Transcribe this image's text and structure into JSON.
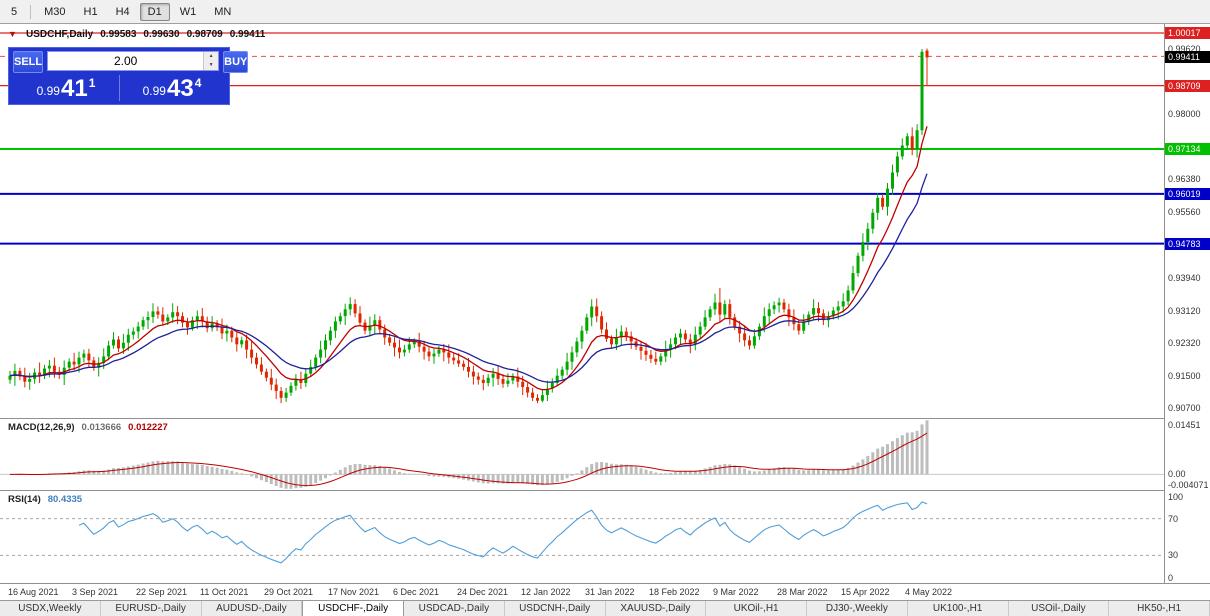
{
  "toolbar": {
    "items": [
      {
        "label": "5",
        "active": false
      },
      {
        "label": "M30",
        "active": false
      },
      {
        "label": "H1",
        "active": false
      },
      {
        "label": "H4",
        "active": false
      },
      {
        "label": "D1",
        "active": true
      },
      {
        "label": "W1",
        "active": false
      },
      {
        "label": "MN",
        "active": false
      }
    ]
  },
  "title": {
    "symbol": "USDCHF,Daily",
    "open": "0.99583",
    "high": "0.99630",
    "low": "0.98709",
    "close": "0.99411"
  },
  "trade": {
    "sell_label": "SELL",
    "buy_label": "BUY",
    "volume": "2.00",
    "sell": {
      "small": "0.99",
      "big": "41",
      "sup": "1"
    },
    "buy": {
      "small": "0.99",
      "big": "43",
      "sup": "4"
    }
  },
  "colors": {
    "macd_hist": "#bdbdbd",
    "macd_signal": "#c00000",
    "rsi_line": "#4f9fd8"
  },
  "macd": {
    "label": "MACD(12,26,9)",
    "value_main": "0.013666",
    "value_signal": "0.012227",
    "ticks": [
      "0.01451",
      "0.00",
      "-0.004071"
    ],
    "tick_values": [
      0.01451,
      0,
      -0.004071
    ]
  },
  "rsi": {
    "label": "RSI(14)",
    "value": "80.4335",
    "period": 14,
    "ticks": [
      "100",
      "70",
      "30",
      "0"
    ],
    "tick_values": [
      100,
      70,
      30,
      0
    ],
    "levels": [
      70,
      30
    ]
  },
  "tabs": [
    {
      "label": "USDX,Weekly",
      "active": false
    },
    {
      "label": "EURUSD-,Daily",
      "active": false
    },
    {
      "label": "AUDUSD-,Daily",
      "active": false
    },
    {
      "label": "USDCHF-,Daily",
      "active": true
    },
    {
      "label": "USDCAD-,Daily",
      "active": false
    },
    {
      "label": "USDCNH-,Daily",
      "active": false
    },
    {
      "label": "XAUUSD-,Daily",
      "active": false
    },
    {
      "label": "UKOil-,H1",
      "active": false
    },
    {
      "label": "DJ30-,Weekly",
      "active": false
    },
    {
      "label": "UK100-,H1",
      "active": false
    },
    {
      "label": "USOil-,Daily",
      "active": false
    },
    {
      "label": "HK50-,H1",
      "active": false
    }
  ],
  "chart_data": {
    "type": "candlestick",
    "title": "USDCHF Daily with MACD(12,26,9) and RSI(14)",
    "scale": 10000,
    "x_start": 10,
    "x_spacing": 4.93,
    "x_label_step": 13,
    "x_labels": [
      "16 Aug 2021",
      "3 Sep 2021",
      "22 Sep 2021",
      "11 Oct 2021",
      "29 Oct 2021",
      "17 Nov 2021",
      "6 Dec 2021",
      "24 Dec 2021",
      "12 Jan 2022",
      "31 Jan 2022",
      "18 Feb 2022",
      "9 Mar 2022",
      "28 Mar 2022",
      "15 Apr 2022",
      "4 May 2022"
    ],
    "y_range": [
      0.9045,
      1.0024
    ],
    "y_ticks": [
      "0.99620",
      "0.98000",
      "0.97180",
      "0.96380",
      "0.95560",
      "0.93940",
      "0.93120",
      "0.92320",
      "0.91500",
      "0.90700"
    ],
    "up_color": "#00a800",
    "down_color": "#e02800",
    "mas": [
      {
        "period": 9,
        "color": "#c00000"
      },
      {
        "period": 18,
        "color": "#20209c"
      }
    ],
    "levels": [
      {
        "price": 1.00017,
        "label": "1.00017",
        "color": "#dd2020",
        "style": "solid",
        "width": 1.2,
        "box": true
      },
      {
        "price": 0.99434,
        "label": "",
        "color": "#e05050",
        "style": "dashed",
        "width": 1,
        "box": false
      },
      {
        "price": 0.98709,
        "label": "0.98709",
        "color": "#dd2020",
        "style": "solid",
        "width": 1.2,
        "box": true
      },
      {
        "price": 0.97134,
        "label": "0.97134",
        "color": "#00c000",
        "style": "solid",
        "width": 2,
        "box": true
      },
      {
        "price": 0.96019,
        "label": "0.96019",
        "color": "#0000c8",
        "style": "solid",
        "width": 2,
        "box": true
      },
      {
        "price": 0.94783,
        "label": "0.94783",
        "color": "#0000c8",
        "style": "solid",
        "width": 2,
        "box": true
      }
    ],
    "bid_marker": {
      "price": 0.99411,
      "label": "0.99411",
      "bg": "#000000"
    },
    "candles": [
      [
        9140,
        9162,
        9130,
        9150
      ],
      [
        9150,
        9180,
        9125,
        9162
      ],
      [
        9162,
        9170,
        9139,
        9148
      ],
      [
        9148,
        9170,
        9121,
        9135
      ],
      [
        9135,
        9157,
        9115,
        9142
      ],
      [
        9142,
        9168,
        9130,
        9158
      ],
      [
        9158,
        9183,
        9132,
        9150
      ],
      [
        9150,
        9177,
        9142,
        9168
      ],
      [
        9168,
        9189,
        9146,
        9175
      ],
      [
        9175,
        9195,
        9145,
        9160
      ],
      [
        9160,
        9172,
        9142,
        9152
      ],
      [
        9152,
        9188,
        9127,
        9170
      ],
      [
        9170,
        9193,
        9161,
        9185
      ],
      [
        9185,
        9207,
        9164,
        9178
      ],
      [
        9178,
        9210,
        9158,
        9195
      ],
      [
        9195,
        9215,
        9183,
        9205
      ],
      [
        9205,
        9217,
        9170,
        9188
      ],
      [
        9188,
        9197,
        9162,
        9170
      ],
      [
        9170,
        9196,
        9148,
        9182
      ],
      [
        9182,
        9218,
        9167,
        9198
      ],
      [
        9198,
        9237,
        9188,
        9225
      ],
      [
        9225,
        9258,
        9217,
        9240
      ],
      [
        9240,
        9248,
        9209,
        9218
      ],
      [
        9218,
        9254,
        9204,
        9232
      ],
      [
        9232,
        9267,
        9212,
        9252
      ],
      [
        9252,
        9270,
        9240,
        9260
      ],
      [
        9260,
        9284,
        9242,
        9272
      ],
      [
        9272,
        9297,
        9264,
        9288
      ],
      [
        9288,
        9310,
        9266,
        9296
      ],
      [
        9296,
        9330,
        9281,
        9310
      ],
      [
        9310,
        9322,
        9292,
        9302
      ],
      [
        9302,
        9320,
        9277,
        9285
      ],
      [
        9285,
        9303,
        9276,
        9295
      ],
      [
        9295,
        9330,
        9281,
        9308
      ],
      [
        9308,
        9323,
        9278,
        9298
      ],
      [
        9298,
        9308,
        9270,
        9282
      ],
      [
        9282,
        9294,
        9252,
        9270
      ],
      [
        9270,
        9297,
        9262,
        9288
      ],
      [
        9288,
        9312,
        9266,
        9298
      ],
      [
        9298,
        9318,
        9270,
        9285
      ],
      [
        9285,
        9297,
        9258,
        9268
      ],
      [
        9268,
        9298,
        9260,
        9280
      ],
      [
        9280,
        9288,
        9261,
        9270
      ],
      [
        9270,
        9292,
        9241,
        9255
      ],
      [
        9255,
        9277,
        9235,
        9262
      ],
      [
        9262,
        9272,
        9233,
        9245
      ],
      [
        9245,
        9257,
        9210,
        9228
      ],
      [
        9228,
        9247,
        9220,
        9238
      ],
      [
        9238,
        9252,
        9193,
        9215
      ],
      [
        9215,
        9235,
        9180,
        9195
      ],
      [
        9195,
        9207,
        9168,
        9178
      ],
      [
        9178,
        9196,
        9152,
        9160
      ],
      [
        9160,
        9168,
        9136,
        9145
      ],
      [
        9145,
        9167,
        9114,
        9128
      ],
      [
        9128,
        9143,
        9092,
        9112
      ],
      [
        9112,
        9122,
        9082,
        9095
      ],
      [
        9095,
        9120,
        9085,
        9108
      ],
      [
        9108,
        9134,
        9100,
        9125
      ],
      [
        9125,
        9154,
        9113,
        9140
      ],
      [
        9140,
        9160,
        9117,
        9132
      ],
      [
        9132,
        9167,
        9122,
        9155
      ],
      [
        9155,
        9190,
        9147,
        9172
      ],
      [
        9172,
        9203,
        9163,
        9195
      ],
      [
        9195,
        9237,
        9181,
        9215
      ],
      [
        9215,
        9253,
        9195,
        9238
      ],
      [
        9238,
        9272,
        9226,
        9262
      ],
      [
        9262,
        9297,
        9244,
        9285
      ],
      [
        9285,
        9307,
        9277,
        9298
      ],
      [
        9298,
        9329,
        9276,
        9315
      ],
      [
        9315,
        9345,
        9300,
        9328
      ],
      [
        9328,
        9340,
        9295,
        9305
      ],
      [
        9305,
        9323,
        9274,
        9282
      ],
      [
        9282,
        9290,
        9253,
        9262
      ],
      [
        9262,
        9297,
        9248,
        9275
      ],
      [
        9275,
        9303,
        9255,
        9288
      ],
      [
        9288,
        9298,
        9253,
        9265
      ],
      [
        9265,
        9277,
        9227,
        9245
      ],
      [
        9245,
        9254,
        9224,
        9232
      ],
      [
        9232,
        9246,
        9198,
        9220
      ],
      [
        9220,
        9240,
        9193,
        9208
      ],
      [
        9208,
        9227,
        9198,
        9215
      ],
      [
        9215,
        9246,
        9207,
        9228
      ],
      [
        9228,
        9243,
        9219,
        9235
      ],
      [
        9235,
        9257,
        9208,
        9222
      ],
      [
        9222,
        9237,
        9190,
        9210
      ],
      [
        9210,
        9220,
        9186,
        9198
      ],
      [
        9198,
        9217,
        9180,
        9205
      ],
      [
        9205,
        9224,
        9197,
        9215
      ],
      [
        9215,
        9229,
        9186,
        9208
      ],
      [
        9208,
        9228,
        9180,
        9195
      ],
      [
        9195,
        9207,
        9178,
        9188
      ],
      [
        9188,
        9206,
        9172,
        9180
      ],
      [
        9180,
        9188,
        9163,
        9172
      ],
      [
        9172,
        9194,
        9146,
        9160
      ],
      [
        9160,
        9175,
        9128,
        9148
      ],
      [
        9148,
        9158,
        9128,
        9140
      ],
      [
        9140,
        9152,
        9114,
        9132
      ],
      [
        9132,
        9154,
        9124,
        9145
      ],
      [
        9145,
        9169,
        9123,
        9155
      ],
      [
        9155,
        9175,
        9127,
        9142
      ],
      [
        9142,
        9154,
        9120,
        9130
      ],
      [
        9130,
        9156,
        9122,
        9138
      ],
      [
        9138,
        9156,
        9129,
        9148
      ],
      [
        9148,
        9170,
        9121,
        9135
      ],
      [
        9135,
        9150,
        9102,
        9122
      ],
      [
        9122,
        9132,
        9096,
        9108
      ],
      [
        9108,
        9120,
        9087,
        9095
      ],
      [
        9095,
        9104,
        9082,
        9088
      ],
      [
        9088,
        9116,
        9084,
        9102
      ],
      [
        9102,
        9138,
        9087,
        9118
      ],
      [
        9118,
        9144,
        9108,
        9132
      ],
      [
        9132,
        9168,
        9124,
        9150
      ],
      [
        9150,
        9173,
        9141,
        9165
      ],
      [
        9165,
        9207,
        9151,
        9185
      ],
      [
        9185,
        9223,
        9165,
        9208
      ],
      [
        9208,
        9245,
        9196,
        9235
      ],
      [
        9235,
        9274,
        9217,
        9262
      ],
      [
        9262,
        9304,
        9254,
        9295
      ],
      [
        9295,
        9340,
        9273,
        9322
      ],
      [
        9322,
        9342,
        9283,
        9298
      ],
      [
        9298,
        9310,
        9255,
        9265
      ],
      [
        9265,
        9283,
        9234,
        9242
      ],
      [
        9242,
        9250,
        9219,
        9228
      ],
      [
        9228,
        9267,
        9214,
        9245
      ],
      [
        9245,
        9275,
        9225,
        9260
      ],
      [
        9260,
        9270,
        9236,
        9248
      ],
      [
        9248,
        9260,
        9217,
        9235
      ],
      [
        9235,
        9244,
        9214,
        9222
      ],
      [
        9222,
        9236,
        9190,
        9212
      ],
      [
        9212,
        9232,
        9187,
        9202
      ],
      [
        9202,
        9214,
        9182,
        9192
      ],
      [
        9192,
        9210,
        9177,
        9185
      ],
      [
        9185,
        9206,
        9176,
        9198
      ],
      [
        9198,
        9237,
        9184,
        9215
      ],
      [
        9215,
        9243,
        9195,
        9228
      ],
      [
        9228,
        9255,
        9216,
        9245
      ],
      [
        9245,
        9267,
        9227,
        9255
      ],
      [
        9255,
        9264,
        9232,
        9240
      ],
      [
        9240,
        9254,
        9206,
        9228
      ],
      [
        9228,
        9272,
        9213,
        9252
      ],
      [
        9252,
        9284,
        9242,
        9272
      ],
      [
        9272,
        9313,
        9264,
        9295
      ],
      [
        9295,
        9323,
        9286,
        9315
      ],
      [
        9315,
        9354,
        9301,
        9332
      ],
      [
        9332,
        9368,
        9282,
        9302
      ],
      [
        9302,
        9338,
        9290,
        9328
      ],
      [
        9328,
        9340,
        9277,
        9295
      ],
      [
        9295,
        9304,
        9264,
        9272
      ],
      [
        9272,
        9286,
        9233,
        9255
      ],
      [
        9255,
        9275,
        9223,
        9238
      ],
      [
        9238,
        9250,
        9215,
        9225
      ],
      [
        9225,
        9266,
        9217,
        9248
      ],
      [
        9248,
        9280,
        9239,
        9272
      ],
      [
        9272,
        9320,
        9258,
        9298
      ],
      [
        9298,
        9330,
        9278,
        9315
      ],
      [
        9315,
        9335,
        9303,
        9325
      ],
      [
        9325,
        9344,
        9307,
        9332
      ],
      [
        9332,
        9341,
        9307,
        9315
      ],
      [
        9315,
        9329,
        9273,
        9295
      ],
      [
        9295,
        9315,
        9263,
        9278
      ],
      [
        9278,
        9290,
        9252,
        9262
      ],
      [
        9262,
        9303,
        9254,
        9285
      ],
      [
        9285,
        9310,
        9276,
        9302
      ],
      [
        9302,
        9340,
        9288,
        9318
      ],
      [
        9318,
        9333,
        9285,
        9305
      ],
      [
        9305,
        9315,
        9276,
        9288
      ],
      [
        9288,
        9310,
        9270,
        9298
      ],
      [
        9298,
        9321,
        9290,
        9312
      ],
      [
        9312,
        9336,
        9290,
        9322
      ],
      [
        9322,
        9355,
        9307,
        9335
      ],
      [
        9335,
        9374,
        9325,
        9362
      ],
      [
        9362,
        9423,
        9354,
        9405
      ],
      [
        9405,
        9456,
        9396,
        9448
      ],
      [
        9448,
        9504,
        9434,
        9482
      ],
      [
        9482,
        9530,
        9462,
        9515
      ],
      [
        9515,
        9565,
        9503,
        9555
      ],
      [
        9555,
        9604,
        9537,
        9592
      ],
      [
        9592,
        9601,
        9562,
        9570
      ],
      [
        9570,
        9629,
        9548,
        9615
      ],
      [
        9615,
        9675,
        9600,
        9655
      ],
      [
        9655,
        9707,
        9645,
        9695
      ],
      [
        9695,
        9740,
        9687,
        9722
      ],
      [
        9722,
        9753,
        9713,
        9745
      ],
      [
        9745,
        9767,
        9698,
        9712
      ],
      [
        9712,
        9775,
        9692,
        9760
      ],
      [
        9760,
        9962,
        9748,
        9955
      ],
      [
        9958,
        9963,
        9871,
        9941
      ]
    ]
  }
}
